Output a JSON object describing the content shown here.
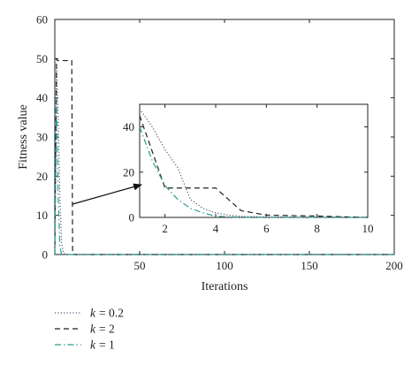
{
  "chart_data": {
    "type": "line",
    "xlabel": "Iterations",
    "ylabel": "Fitness value",
    "xlim": [
      0,
      200
    ],
    "ylim": [
      0,
      60
    ],
    "xticks": [
      "50",
      "100",
      "150",
      "200"
    ],
    "yticks": [
      "0",
      "10",
      "20",
      "30",
      "40",
      "50",
      "60"
    ],
    "grid": false,
    "legend_position": "bottom-left",
    "series": [
      {
        "name": "0.2",
        "style": "dotted",
        "color": "#555577",
        "x": [
          0,
          1,
          2,
          3,
          4,
          5,
          6,
          10,
          20,
          200
        ],
        "y": [
          0,
          48,
          35,
          15,
          3,
          0.5,
          0.1,
          0,
          0,
          0
        ]
      },
      {
        "name": "2",
        "style": "dashed",
        "color": "#222222",
        "x": [
          0,
          1,
          1.5,
          2,
          3,
          4,
          6,
          10,
          10.5,
          200
        ],
        "y": [
          0,
          50,
          49.5,
          49.5,
          49.5,
          49.5,
          49.5,
          49.5,
          0,
          0
        ]
      },
      {
        "name": "1",
        "style": "dashdot",
        "color": "#2a9d8f",
        "x": [
          0,
          1,
          2,
          3,
          4,
          5,
          200
        ],
        "y": [
          0,
          40,
          15,
          2,
          0,
          0,
          0
        ]
      }
    ],
    "inset": {
      "xlim": [
        1,
        10
      ],
      "ylim": [
        0,
        50
      ],
      "xticks": [
        "2",
        "4",
        "6",
        "8",
        "10"
      ],
      "yticks": [
        "0",
        "20",
        "40"
      ],
      "series": [
        {
          "name": "0.2",
          "x": [
            1,
            1.5,
            2,
            2.5,
            3,
            3.5,
            4,
            4.5,
            5,
            6,
            8,
            10
          ],
          "y": [
            48,
            40,
            30,
            22,
            8,
            4,
            2,
            1,
            0.5,
            0.2,
            0.1,
            0
          ]
        },
        {
          "name": "2",
          "x": [
            1,
            2,
            3,
            4,
            4.5,
            5,
            6,
            8,
            10
          ],
          "y": [
            45,
            13,
            13,
            13,
            8,
            3,
            1,
            0.6,
            0
          ]
        },
        {
          "name": "1",
          "x": [
            1,
            1.5,
            2,
            2.5,
            3,
            3.5,
            4,
            5,
            10
          ],
          "y": [
            40,
            25,
            14,
            8,
            4,
            2,
            0.5,
            0,
            0
          ]
        }
      ]
    }
  },
  "legend": {
    "var": "k",
    "items": [
      {
        "value": "= 0.2"
      },
      {
        "value": "= 2"
      },
      {
        "value": "= 1"
      }
    ]
  }
}
